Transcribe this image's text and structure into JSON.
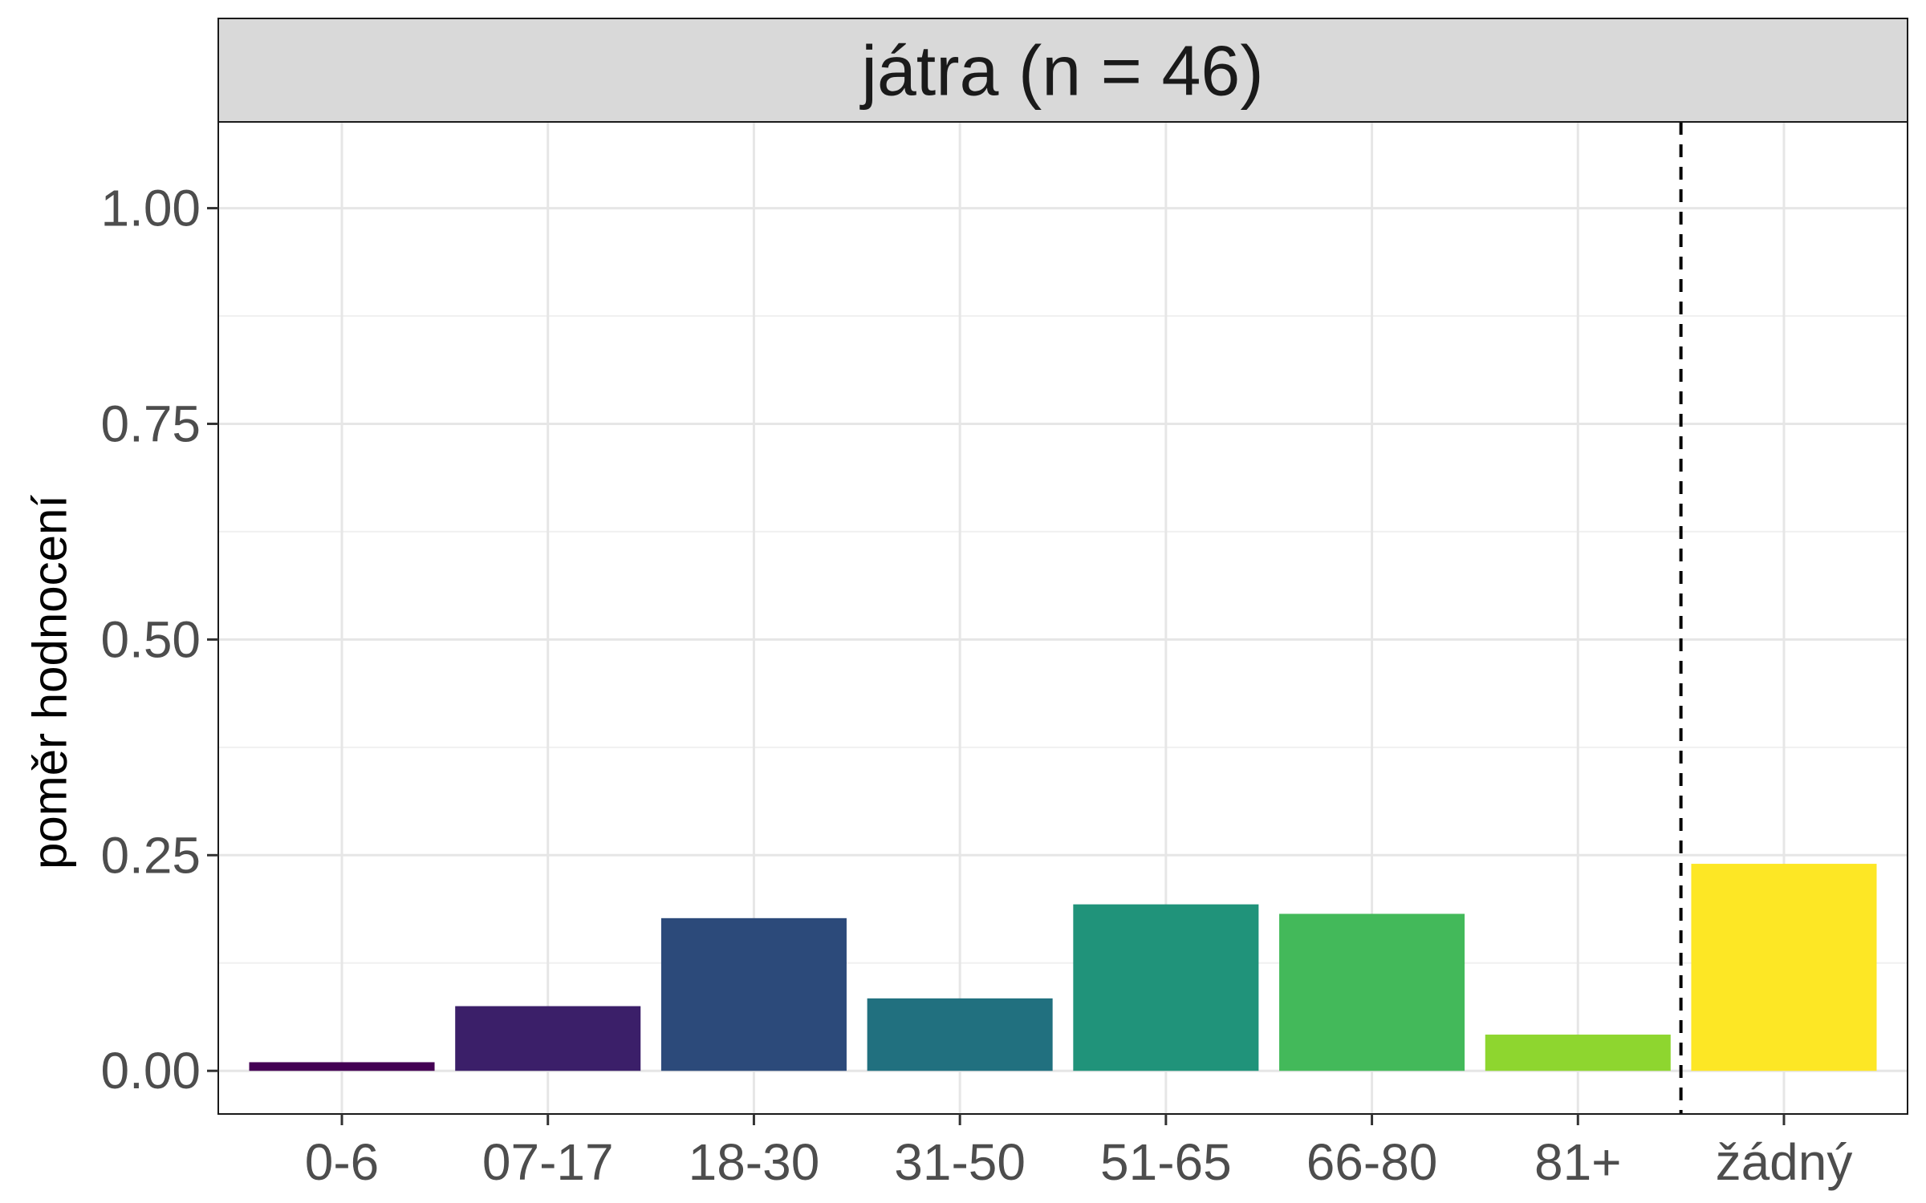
{
  "chart_data": {
    "type": "bar",
    "facet_title": "játra (n = 46)",
    "ylabel": "poměr hodnocení",
    "xlabel": "",
    "categories": [
      "0-6",
      "07-17",
      "18-30",
      "31-50",
      "51-65",
      "66-80",
      "81+",
      "žádný"
    ],
    "values": [
      0.01,
      0.075,
      0.177,
      0.084,
      0.193,
      0.182,
      0.042,
      0.24
    ],
    "colors": [
      "#440154",
      "#3B1F69",
      "#2C4A7A",
      "#21707F",
      "#20937A",
      "#43B95A",
      "#8ED62F",
      "#FDE725"
    ],
    "ylim": [
      -0.05,
      1.1
    ],
    "yticks": [
      0,
      0.25,
      0.5,
      0.75,
      1
    ],
    "ytick_labels": [
      "0.00",
      "0.25",
      "0.50",
      "0.75",
      "1.00"
    ],
    "separator_after_category": "81+",
    "separator_style": "dashed",
    "grid": true,
    "legend": "none"
  }
}
